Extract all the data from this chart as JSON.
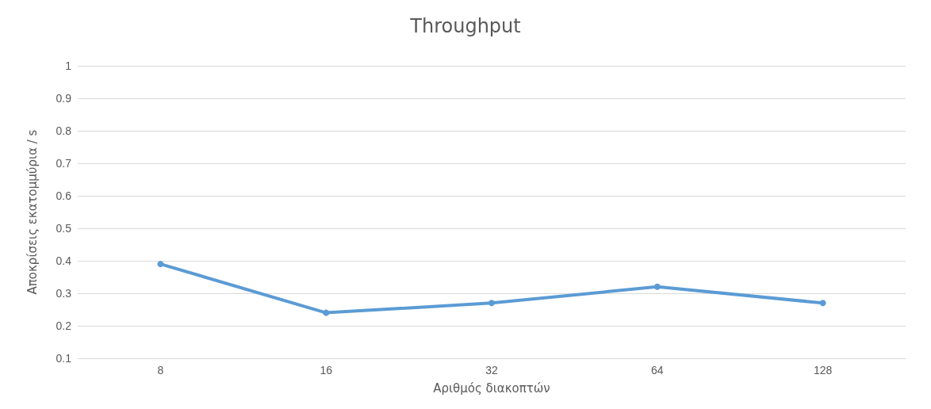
{
  "chart_data": {
    "type": "line",
    "title": "Throughput",
    "xlabel": "Αριθμός διακοπτών",
    "ylabel": "Αποκρίσεις εκατομμύρια / s",
    "categories": [
      "8",
      "16",
      "32",
      "64",
      "128"
    ],
    "series": [
      {
        "color": "#5b9bd5",
        "values": [
          0.39,
          0.24,
          0.27,
          0.32,
          0.27
        ]
      }
    ],
    "ylim": [
      0.1,
      1
    ],
    "yticks": [
      0.1,
      0.2,
      0.3,
      0.4,
      0.5,
      0.6,
      0.7,
      0.8,
      0.9,
      1
    ],
    "grid": "y",
    "marker": "circle",
    "line_style": "solid"
  }
}
